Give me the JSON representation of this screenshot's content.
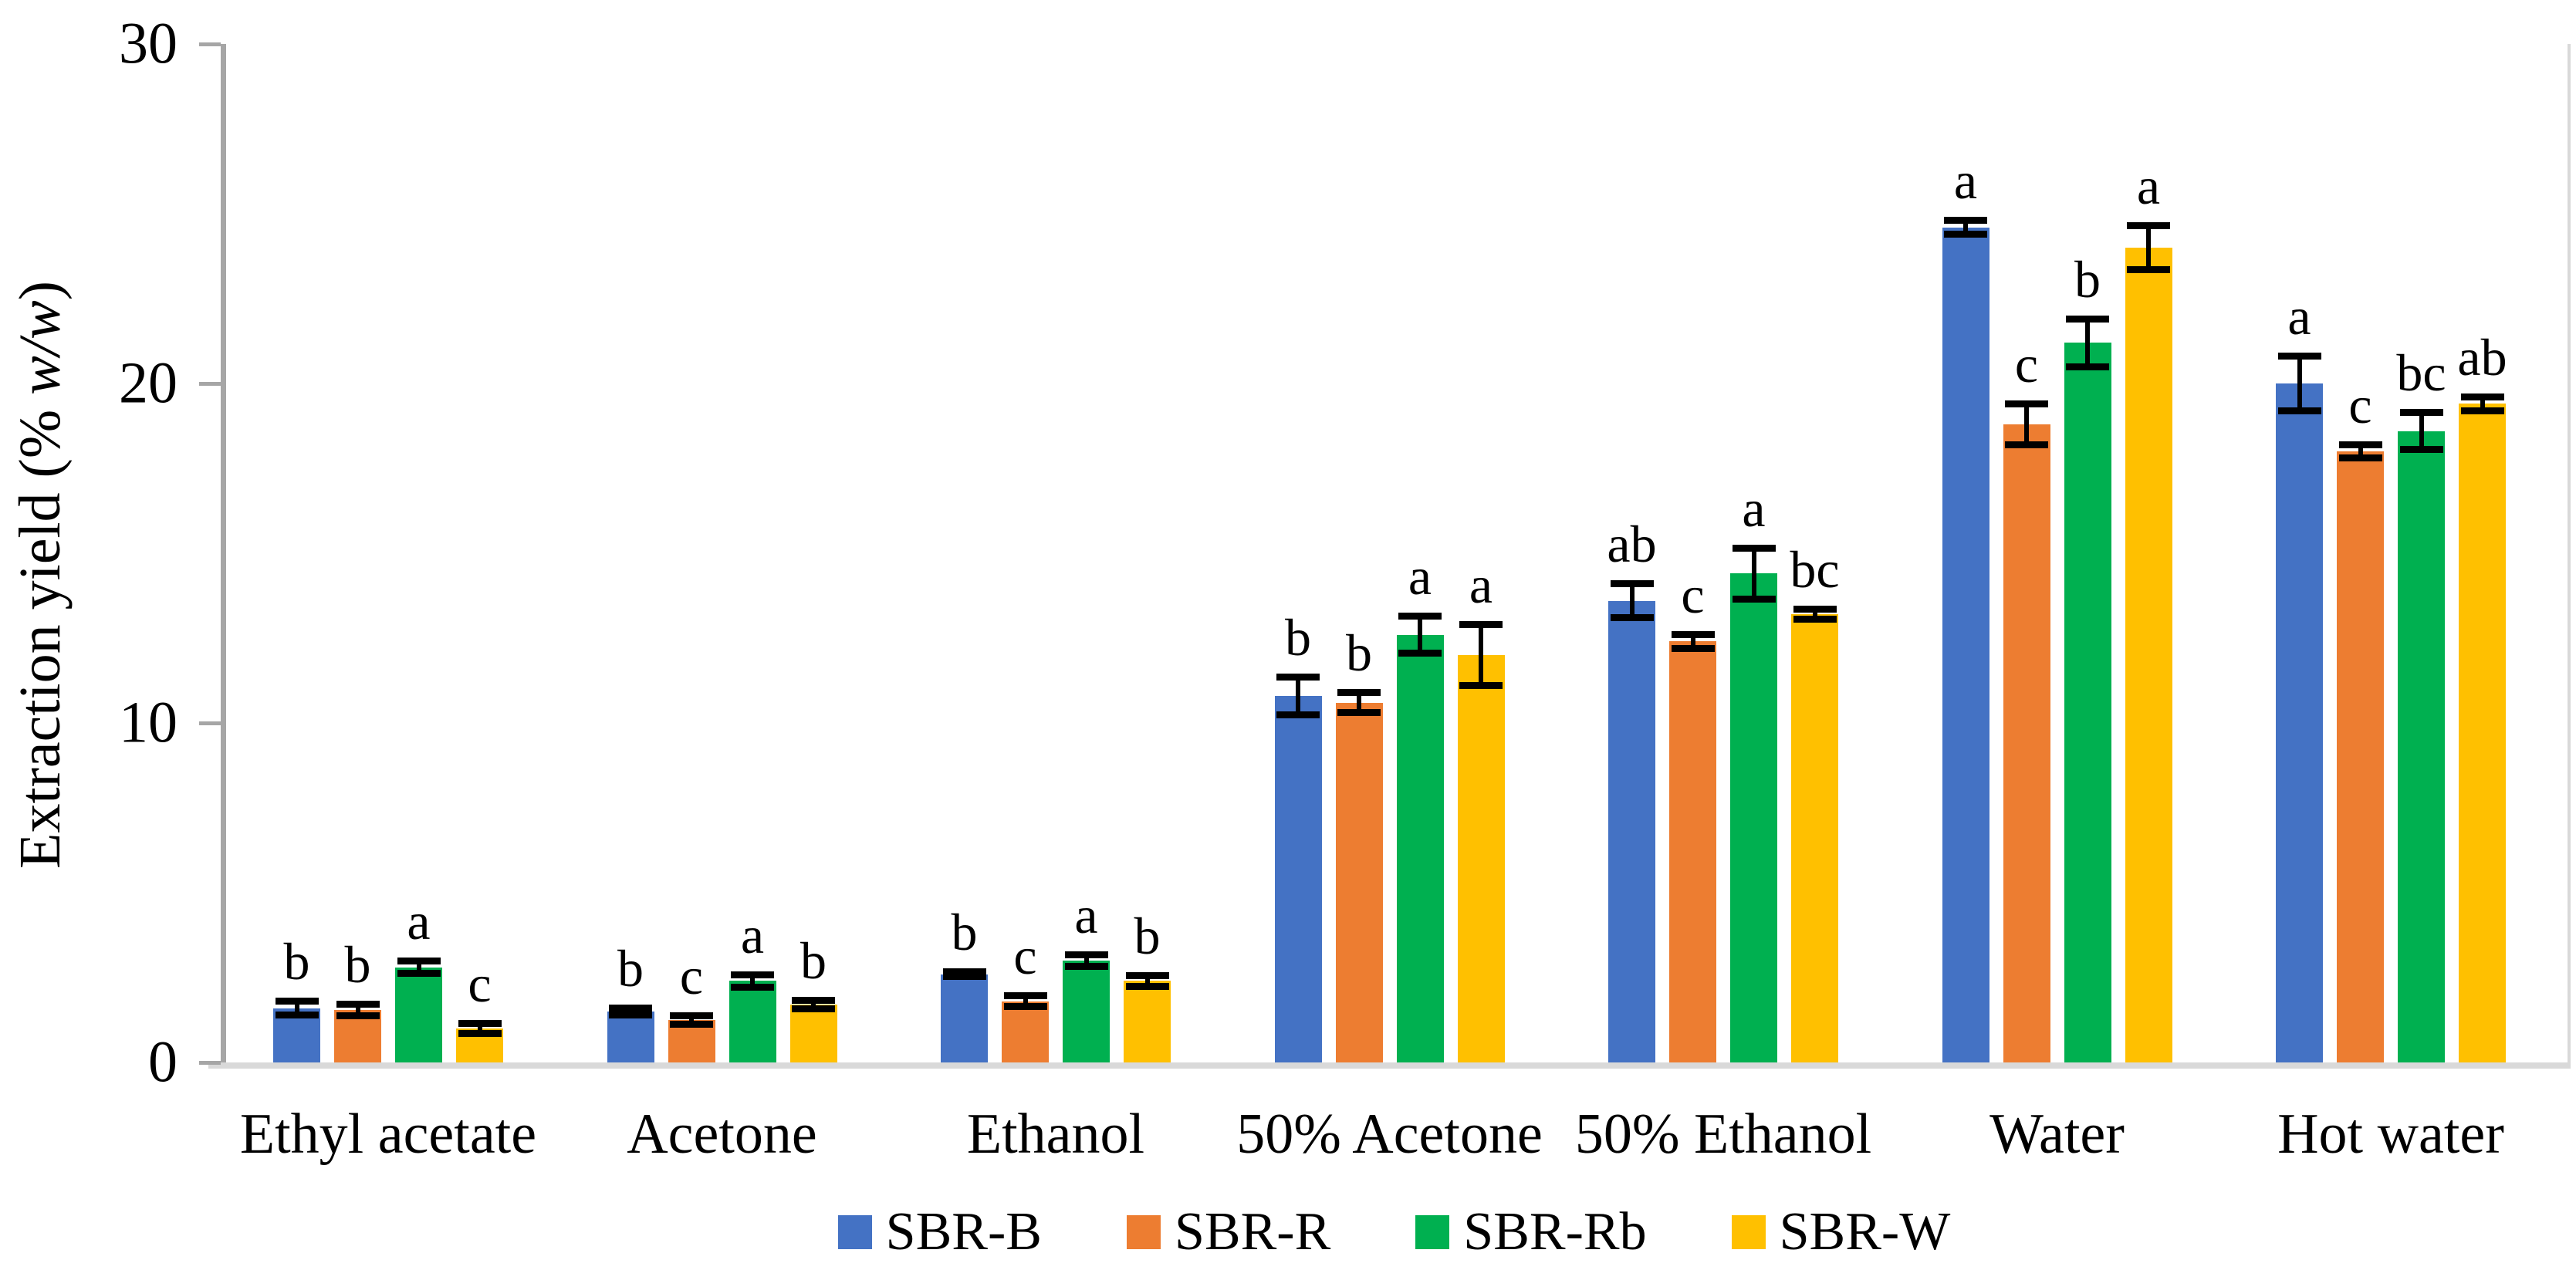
{
  "figure": {
    "y_axis": {
      "label_prefix": "Extraction yield (% ",
      "label_italic": "w/w",
      "label_suffix": ")"
    }
  },
  "chart_data": {
    "type": "bar",
    "title": "",
    "xlabel": "",
    "ylabel": "Extraction yield (% w/w)",
    "ylim": [
      0,
      30
    ],
    "yticks": [
      0,
      10,
      20,
      30
    ],
    "grid": false,
    "legend_position": "bottom",
    "error_bars": true,
    "categories": [
      "Ethyl acetate",
      "Acetone",
      "Ethanol",
      "50% Acetone",
      "50% Ethanol",
      "Water",
      "Hot water"
    ],
    "series": [
      {
        "name": "SBR-B",
        "color": "#4472C4",
        "values": [
          1.6,
          1.5,
          2.6,
          10.8,
          13.6,
          24.6,
          20.0
        ],
        "errors": [
          0.2,
          0.1,
          0.07,
          0.55,
          0.5,
          0.2,
          0.8
        ],
        "letters": [
          "b",
          "b",
          "b",
          "b",
          "ab",
          "a",
          "a"
        ]
      },
      {
        "name": "SBR-R",
        "color": "#ED7D31",
        "values": [
          1.55,
          1.25,
          1.8,
          10.6,
          12.4,
          18.8,
          18.0
        ],
        "errors": [
          0.17,
          0.12,
          0.16,
          0.3,
          0.2,
          0.6,
          0.2
        ],
        "letters": [
          "b",
          "c",
          "c",
          "b",
          "c",
          "c",
          "c"
        ]
      },
      {
        "name": "SBR-Rb",
        "color": "#00B050",
        "values": [
          2.8,
          2.4,
          3.0,
          12.6,
          14.4,
          21.2,
          18.6
        ],
        "errors": [
          0.18,
          0.18,
          0.17,
          0.55,
          0.75,
          0.7,
          0.55
        ],
        "letters": [
          "a",
          "a",
          "a",
          "a",
          "a",
          "b",
          "bc"
        ]
      },
      {
        "name": "SBR-W",
        "color": "#FFC000",
        "values": [
          1.0,
          1.7,
          2.4,
          12.0,
          13.2,
          24.0,
          19.4
        ],
        "errors": [
          0.15,
          0.12,
          0.16,
          0.9,
          0.15,
          0.65,
          0.2
        ],
        "letters": [
          "c",
          "b",
          "b",
          "a",
          "bc",
          "a",
          "ab"
        ]
      }
    ]
  }
}
